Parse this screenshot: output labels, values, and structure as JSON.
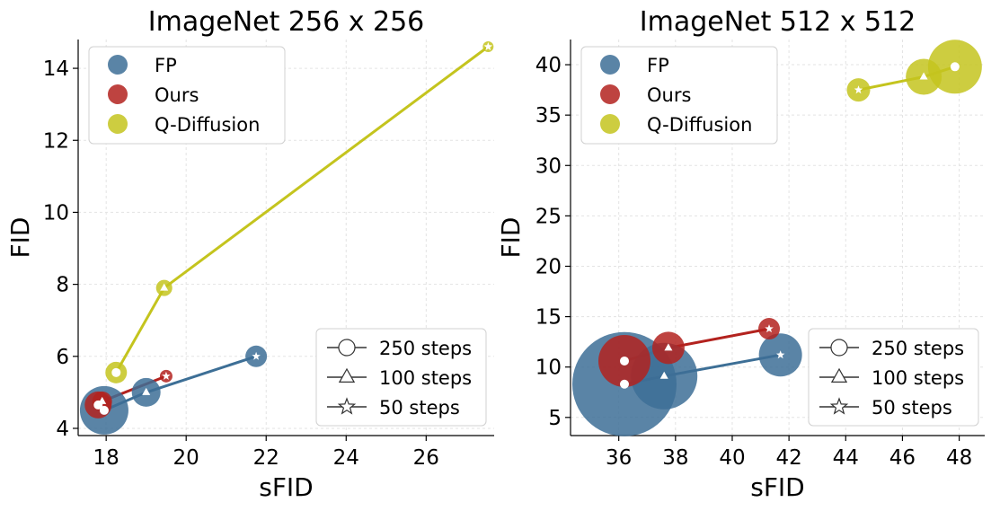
{
  "chart_data": [
    {
      "type": "scatter",
      "title": "ImageNet 256 x 256",
      "xlabel": "sFID",
      "ylabel": "FID",
      "xlim": [
        17.3,
        27.7
      ],
      "ylim": [
        3.8,
        14.8
      ],
      "xticks": [
        18,
        20,
        22,
        24,
        26
      ],
      "yticks": [
        4,
        6,
        8,
        10,
        12,
        14
      ],
      "grid": true,
      "legend_position": "top-left",
      "series": [
        {
          "name": "FP",
          "color": "#3d6f96",
          "points": [
            {
              "steps": 250,
              "x": 17.95,
              "y": 4.5,
              "marker": "circle",
              "bubble": 27
            },
            {
              "steps": 100,
              "x": 19.0,
              "y": 5.0,
              "marker": "triangle",
              "bubble": 16
            },
            {
              "steps": 50,
              "x": 21.75,
              "y": 6.0,
              "marker": "star",
              "bubble": 12
            }
          ]
        },
        {
          "name": "Ours",
          "color": "#b3221e",
          "points": [
            {
              "steps": 250,
              "x": 17.8,
              "y": 4.65,
              "marker": "circle",
              "bubble": 15
            },
            {
              "steps": 100,
              "x": 17.9,
              "y": 4.75,
              "marker": "triangle",
              "bubble": 11
            },
            {
              "steps": 50,
              "x": 19.5,
              "y": 5.45,
              "marker": "star",
              "bubble": 7
            }
          ]
        },
        {
          "name": "Q-Diffusion",
          "color": "#c4c41e",
          "points": [
            {
              "steps": 250,
              "x": 18.25,
              "y": 5.55,
              "marker": "circle",
              "bubble": 12
            },
            {
              "steps": 100,
              "x": 19.45,
              "y": 7.9,
              "marker": "triangle",
              "bubble": 9
            },
            {
              "steps": 50,
              "x": 27.55,
              "y": 14.6,
              "marker": "star",
              "bubble": 6
            }
          ]
        }
      ]
    },
    {
      "type": "scatter",
      "title": "ImageNet 512 x 512",
      "xlabel": "sFID",
      "ylabel": "FID",
      "xlim": [
        34.3,
        48.9
      ],
      "ylim": [
        3.2,
        42.5
      ],
      "xticks": [
        36,
        38,
        40,
        42,
        44,
        46,
        48
      ],
      "yticks": [
        5,
        10,
        15,
        20,
        25,
        30,
        35,
        40
      ],
      "grid": true,
      "legend_position": "top-left",
      "series": [
        {
          "name": "FP",
          "color": "#3d6f96",
          "points": [
            {
              "steps": 250,
              "x": 36.2,
              "y": 8.3,
              "marker": "circle",
              "bubble": 58
            },
            {
              "steps": 100,
              "x": 37.6,
              "y": 9.1,
              "marker": "triangle",
              "bubble": 37
            },
            {
              "steps": 50,
              "x": 41.7,
              "y": 11.2,
              "marker": "star",
              "bubble": 24
            }
          ]
        },
        {
          "name": "Ours",
          "color": "#b3221e",
          "points": [
            {
              "steps": 250,
              "x": 36.2,
              "y": 10.6,
              "marker": "circle",
              "bubble": 29
            },
            {
              "steps": 100,
              "x": 37.75,
              "y": 11.9,
              "marker": "triangle",
              "bubble": 18
            },
            {
              "steps": 50,
              "x": 41.3,
              "y": 13.8,
              "marker": "star",
              "bubble": 12
            }
          ]
        },
        {
          "name": "Q-Diffusion",
          "color": "#c4c41e",
          "points": [
            {
              "steps": 250,
              "x": 47.85,
              "y": 39.8,
              "marker": "circle",
              "bubble": 30
            },
            {
              "steps": 100,
              "x": 46.75,
              "y": 38.8,
              "marker": "triangle",
              "bubble": 20
            },
            {
              "steps": 50,
              "x": 44.45,
              "y": 37.5,
              "marker": "star",
              "bubble": 13
            }
          ]
        }
      ]
    }
  ],
  "legends": {
    "methods": [
      "FP",
      "Ours",
      "Q-Diffusion"
    ],
    "steps": [
      {
        "label": "250 steps",
        "marker": "circle"
      },
      {
        "label": "100 steps",
        "marker": "triangle"
      },
      {
        "label": "50 steps",
        "marker": "star"
      }
    ]
  }
}
